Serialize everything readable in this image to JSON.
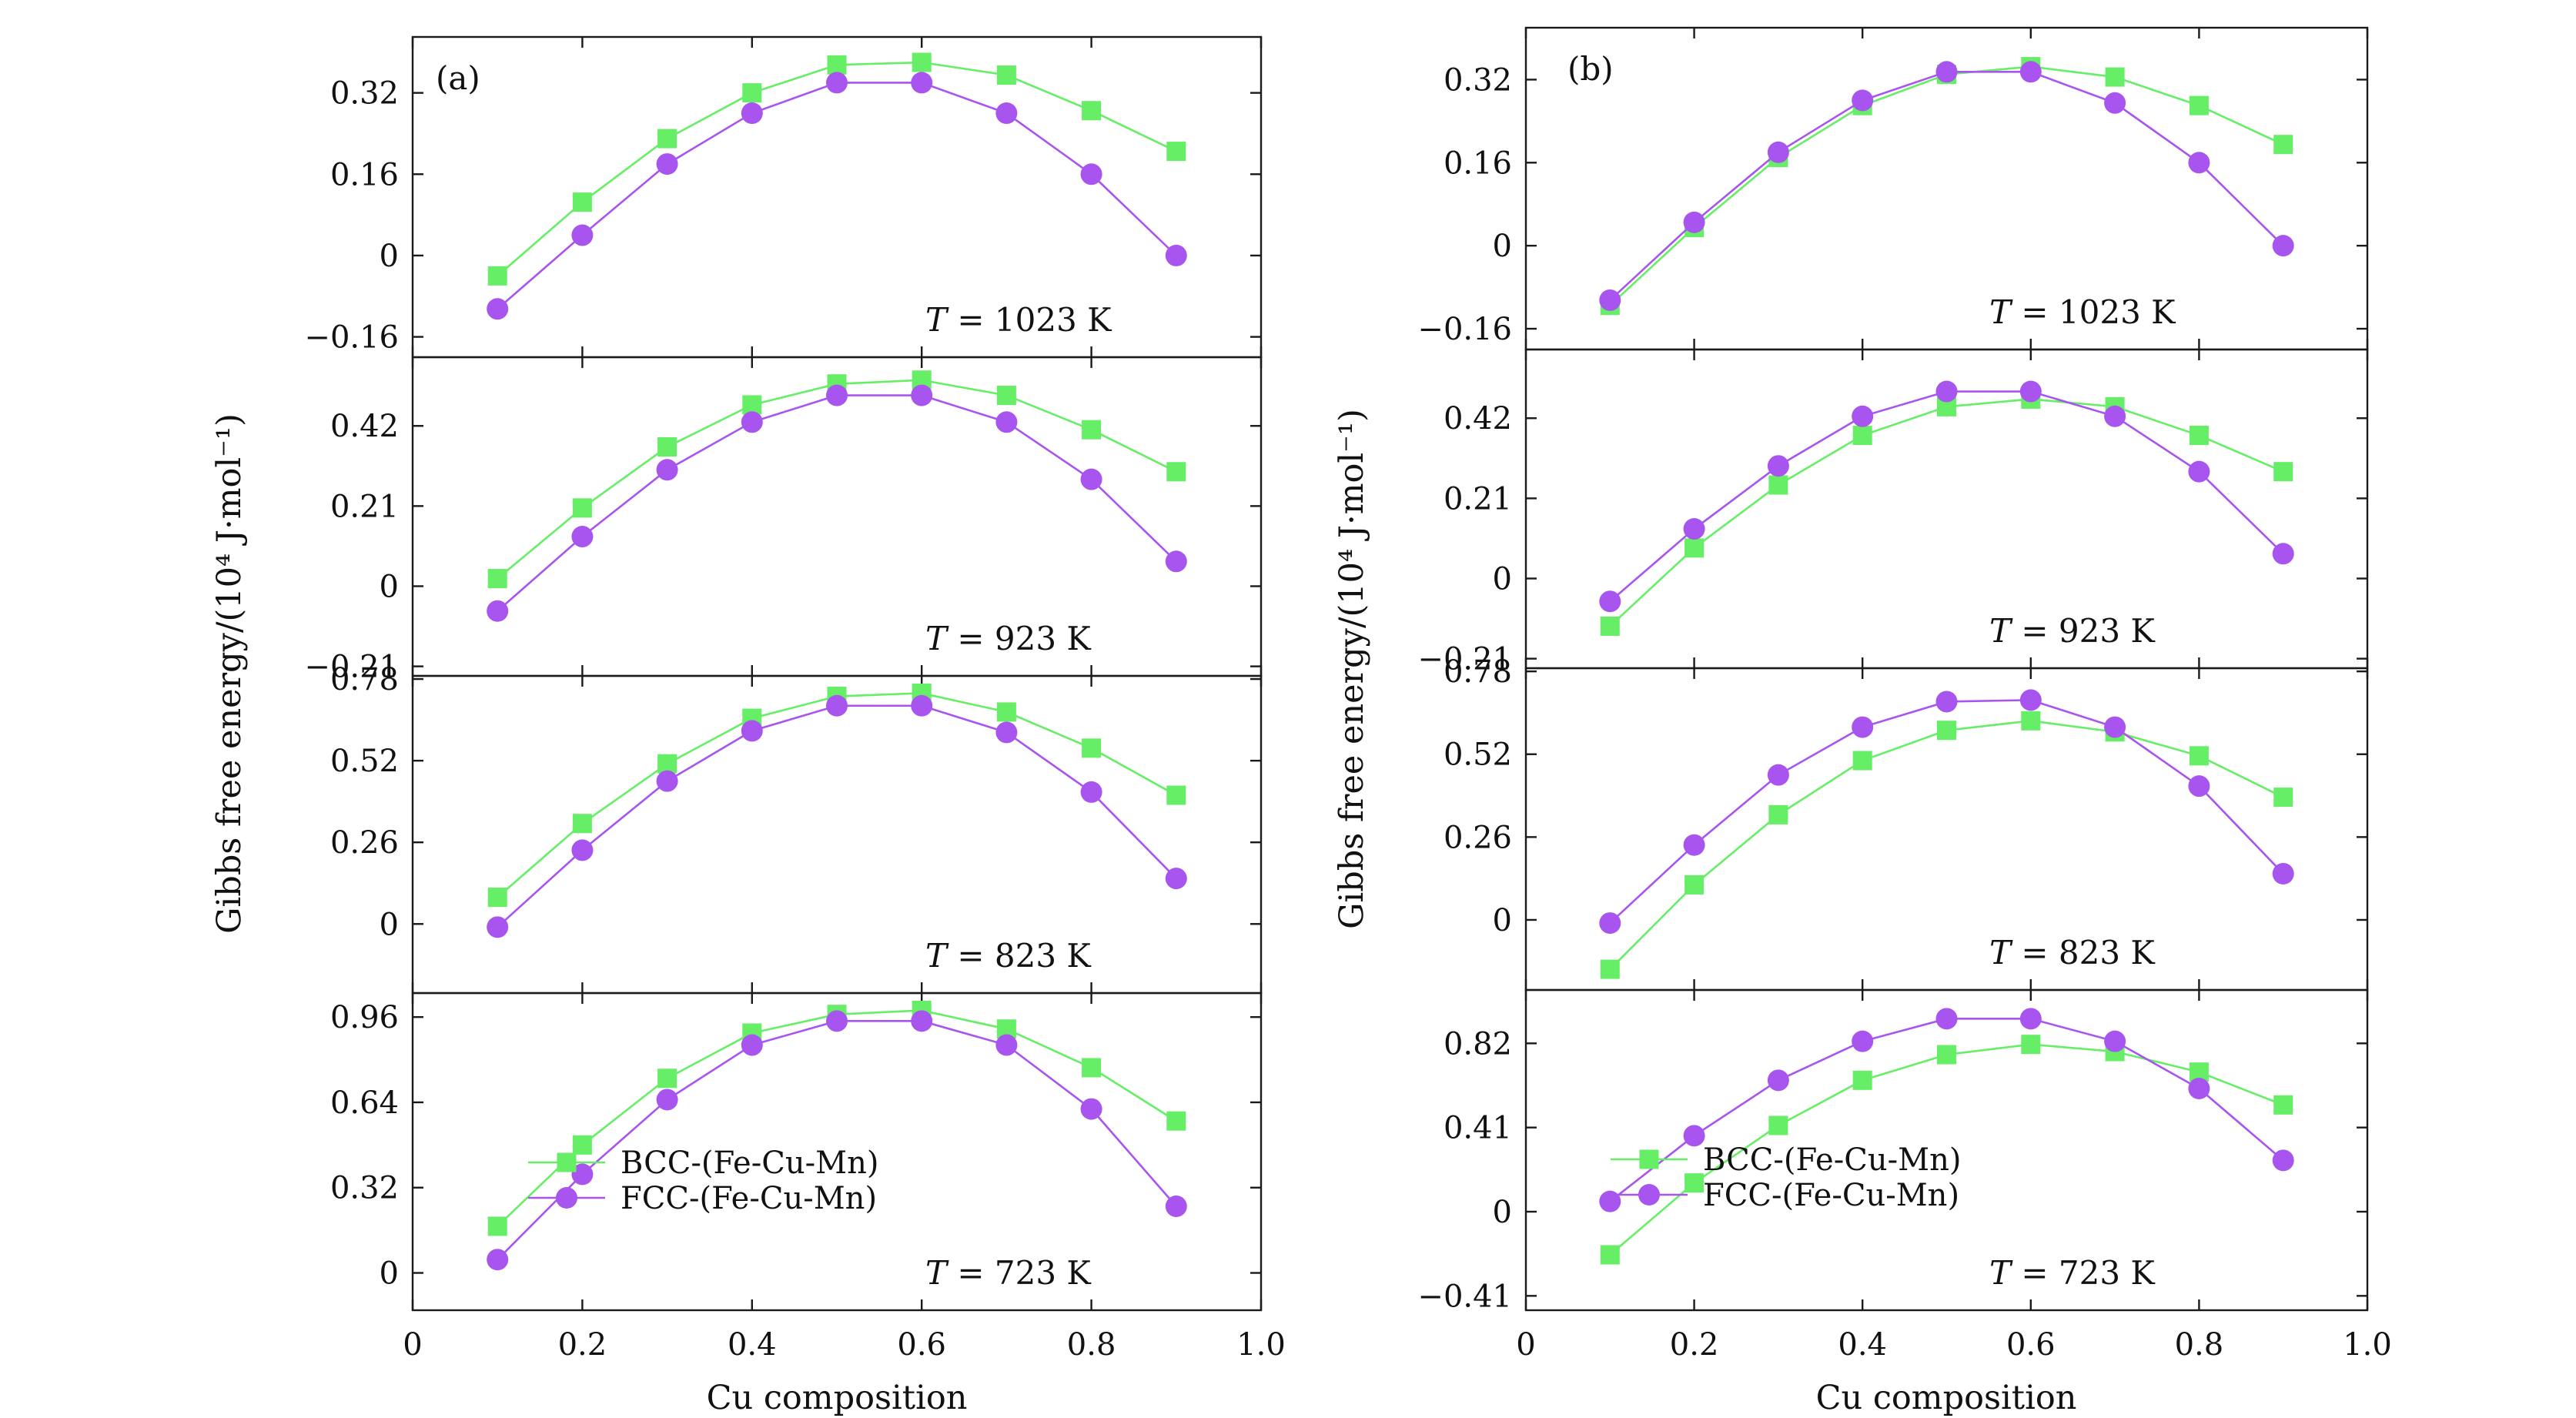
{
  "chart_data": [
    {
      "type": "line",
      "panel_label": "(a)",
      "xlabel": "Cu composition",
      "ylabel": "Gibbs free energy/(10⁴ J·mol⁻¹)",
      "xlim": [
        0,
        1.0
      ],
      "xticks": [
        0,
        0.2,
        0.4,
        0.6,
        0.8,
        1.0
      ],
      "xtick_labels": [
        "0",
        "0.2",
        "0.4",
        "0.6",
        "0.8",
        "1.0"
      ],
      "legend": {
        "location": "lower-left of bottom panel",
        "entries": [
          "BCC-(Fe-Cu-Mn)",
          "FCC-(Fe-Cu-Mn)"
        ]
      },
      "x": [
        0.1,
        0.2,
        0.3,
        0.4,
        0.5,
        0.6,
        0.7,
        0.8,
        0.9
      ],
      "subplots": [
        {
          "temperature_label": [
            "T",
            " = 1023 K"
          ],
          "ylim": [
            -0.2,
            0.43
          ],
          "yticks": [
            -0.16,
            0,
            0.16,
            0.32
          ],
          "ytick_labels": [
            "−0.16",
            "0",
            "0.16",
            "0.32"
          ],
          "series": [
            {
              "name": "BCC-(Fe-Cu-Mn)",
              "values": [
                -0.04,
                0.105,
                0.23,
                0.32,
                0.375,
                0.38,
                0.355,
                0.285,
                0.205
              ]
            },
            {
              "name": "FCC-(Fe-Cu-Mn)",
              "values": [
                -0.105,
                0.04,
                0.18,
                0.28,
                0.34,
                0.34,
                0.28,
                0.16,
                0.0
              ]
            }
          ]
        },
        {
          "temperature_label": [
            "T",
            " = 923 K"
          ],
          "ylim": [
            -0.235,
            0.6
          ],
          "yticks": [
            -0.21,
            0,
            0.21,
            0.42
          ],
          "ytick_labels": [
            "−0.21",
            "0",
            "0.21",
            "0.42"
          ],
          "series": [
            {
              "name": "BCC-(Fe-Cu-Mn)",
              "values": [
                0.02,
                0.205,
                0.365,
                0.475,
                0.53,
                0.54,
                0.5,
                0.41,
                0.3
              ]
            },
            {
              "name": "FCC-(Fe-Cu-Mn)",
              "values": [
                -0.065,
                0.13,
                0.305,
                0.43,
                0.5,
                0.5,
                0.43,
                0.28,
                0.065
              ]
            }
          ]
        },
        {
          "temperature_label": [
            "T",
            " = 823 K"
          ],
          "ylim": [
            -0.22,
            0.79
          ],
          "yticks": [
            0,
            0.26,
            0.52,
            0.78
          ],
          "ytick_labels": [
            "0",
            "0.26",
            "0.52",
            "0.78"
          ],
          "series": [
            {
              "name": "BCC-(Fe-Cu-Mn)",
              "values": [
                0.085,
                0.32,
                0.51,
                0.655,
                0.725,
                0.735,
                0.675,
                0.56,
                0.41
              ]
            },
            {
              "name": "FCC-(Fe-Cu-Mn)",
              "values": [
                -0.01,
                0.235,
                0.455,
                0.615,
                0.695,
                0.695,
                0.61,
                0.42,
                0.145
              ]
            }
          ]
        },
        {
          "temperature_label": [
            "T",
            " = 723 K"
          ],
          "ylim": [
            -0.14,
            1.05
          ],
          "yticks": [
            0,
            0.32,
            0.64,
            0.96
          ],
          "ytick_labels": [
            "0",
            "0.32",
            "0.64",
            "0.96"
          ],
          "series": [
            {
              "name": "BCC-(Fe-Cu-Mn)",
              "values": [
                0.175,
                0.48,
                0.73,
                0.9,
                0.97,
                0.985,
                0.915,
                0.77,
                0.57
              ]
            },
            {
              "name": "FCC-(Fe-Cu-Mn)",
              "values": [
                0.05,
                0.37,
                0.65,
                0.855,
                0.945,
                0.945,
                0.855,
                0.615,
                0.25
              ]
            }
          ]
        }
      ]
    },
    {
      "type": "line",
      "panel_label": "(b)",
      "xlabel": "Cu composition",
      "ylabel": "Gibbs free energy/(10⁴ J·mol⁻¹)",
      "xlim": [
        0,
        1.0
      ],
      "xticks": [
        0,
        0.2,
        0.4,
        0.6,
        0.8,
        1.0
      ],
      "xtick_labels": [
        "0",
        "0.2",
        "0.4",
        "0.6",
        "0.8",
        "1.0"
      ],
      "legend": {
        "location": "lower-left of bottom panel",
        "entries": [
          "BCC-(Fe-Cu-Mn)",
          "FCC-(Fe-Cu-Mn)"
        ]
      },
      "x": [
        0.1,
        0.2,
        0.3,
        0.4,
        0.5,
        0.6,
        0.7,
        0.8,
        0.9
      ],
      "subplots": [
        {
          "temperature_label": [
            "T",
            " = 1023 K"
          ],
          "ylim": [
            -0.2,
            0.42
          ],
          "yticks": [
            -0.16,
            0,
            0.16,
            0.32
          ],
          "ytick_labels": [
            "−0.16",
            "0",
            "0.16",
            "0.32"
          ],
          "series": [
            {
              "name": "BCC-(Fe-Cu-Mn)",
              "values": [
                -0.115,
                0.035,
                0.17,
                0.27,
                0.33,
                0.345,
                0.325,
                0.27,
                0.195
              ]
            },
            {
              "name": "FCC-(Fe-Cu-Mn)",
              "values": [
                -0.105,
                0.045,
                0.18,
                0.28,
                0.335,
                0.335,
                0.275,
                0.16,
                0.0
              ]
            }
          ]
        },
        {
          "temperature_label": [
            "T",
            " = 923 K"
          ],
          "ylim": [
            -0.235,
            0.6
          ],
          "yticks": [
            -0.21,
            0,
            0.21,
            0.42
          ],
          "ytick_labels": [
            "−0.21",
            "0",
            "0.21",
            "0.42"
          ],
          "series": [
            {
              "name": "BCC-(Fe-Cu-Mn)",
              "values": [
                -0.125,
                0.08,
                0.245,
                0.375,
                0.45,
                0.47,
                0.45,
                0.375,
                0.28
              ]
            },
            {
              "name": "FCC-(Fe-Cu-Mn)",
              "values": [
                -0.06,
                0.13,
                0.295,
                0.425,
                0.49,
                0.49,
                0.425,
                0.28,
                0.065
              ]
            }
          ]
        },
        {
          "temperature_label": [
            "T",
            " = 823 K"
          ],
          "ylim": [
            -0.22,
            0.79
          ],
          "yticks": [
            0,
            0.26,
            0.52,
            0.78
          ],
          "ytick_labels": [
            "0",
            "0.26",
            "0.52",
            "0.78"
          ],
          "series": [
            {
              "name": "BCC-(Fe-Cu-Mn)",
              "values": [
                -0.155,
                0.11,
                0.33,
                0.5,
                0.595,
                0.625,
                0.59,
                0.515,
                0.385
              ]
            },
            {
              "name": "FCC-(Fe-Cu-Mn)",
              "values": [
                -0.01,
                0.235,
                0.455,
                0.605,
                0.685,
                0.69,
                0.605,
                0.42,
                0.145
              ]
            }
          ]
        },
        {
          "temperature_label": [
            "T",
            " = 723 K"
          ],
          "ylim": [
            -0.48,
            1.08
          ],
          "yticks": [
            -0.41,
            0,
            0.41,
            0.82
          ],
          "ytick_labels": [
            "−0.41",
            "0",
            "0.41",
            "0.82"
          ],
          "series": [
            {
              "name": "BCC-(Fe-Cu-Mn)",
              "values": [
                -0.21,
                0.14,
                0.42,
                0.64,
                0.765,
                0.815,
                0.78,
                0.68,
                0.52
              ]
            },
            {
              "name": "FCC-(Fe-Cu-Mn)",
              "values": [
                0.05,
                0.37,
                0.64,
                0.83,
                0.94,
                0.94,
                0.83,
                0.6,
                0.25
              ]
            }
          ]
        }
      ]
    }
  ],
  "colors": {
    "bcc": "#66ee66",
    "fcc": "#a855f0",
    "axis": "#1a1a1a"
  }
}
